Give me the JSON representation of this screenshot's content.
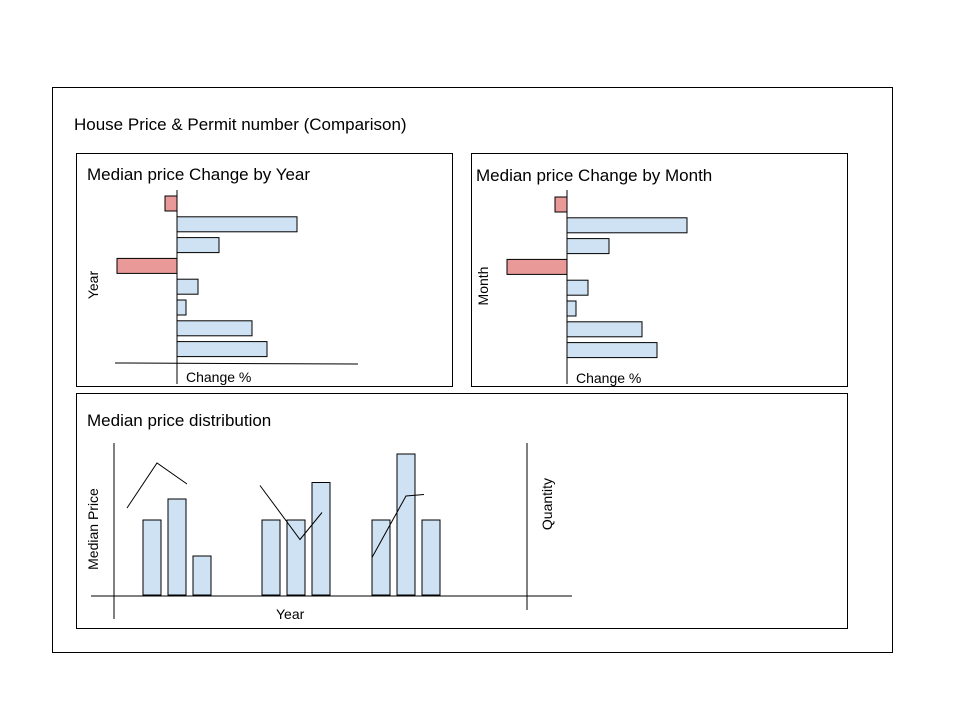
{
  "dashboard": {
    "title": "House Price & Permit number (Comparison)"
  },
  "colors": {
    "positive_fill": "#cfe2f3",
    "negative_fill": "#ea9999",
    "stroke": "#000000"
  },
  "panels": [
    {
      "title": "Median price Change by Year",
      "y_axis_label": "Year",
      "x_axis_label": "Change %"
    },
    {
      "title": "Median price Change by Month",
      "y_axis_label": "Month",
      "x_axis_label": "Change %"
    },
    {
      "title": "Median price distribution",
      "y_axis_label": "Median Price",
      "y2_axis_label": "Quantity",
      "x_axis_label": "Year"
    }
  ],
  "chart_data": [
    {
      "type": "bar",
      "orientation": "horizontal",
      "title": "Median price Change by Year",
      "xlabel": "Change %",
      "ylabel": "Year",
      "values": [
        -2,
        20,
        7,
        -10,
        3.5,
        1.5,
        12.5,
        15
      ],
      "xlim": [
        -10,
        20
      ]
    },
    {
      "type": "bar",
      "orientation": "horizontal",
      "title": "Median price Change by Month",
      "xlabel": "Change %",
      "ylabel": "Month",
      "values": [
        -2,
        20,
        7,
        -10,
        3.5,
        1.5,
        12.5,
        15
      ],
      "xlim": [
        -10,
        20
      ]
    },
    {
      "type": "bar",
      "title": "Median price distribution",
      "xlabel": "Year",
      "ylabel": "Median Price",
      "y2label": "Quantity",
      "groups": [
        {
          "bars": [
            5,
            6.4,
            2.6
          ],
          "line": [
            5.8,
            8.8,
            7.4
          ]
        },
        {
          "bars": [
            5,
            5,
            7.5
          ],
          "line": [
            7.3,
            3.7,
            5.5
          ]
        },
        {
          "bars": [
            5,
            9.4,
            5
          ],
          "line": [
            2.5,
            6.6,
            6.7
          ]
        }
      ],
      "ylim": [
        0,
        10
      ]
    }
  ]
}
